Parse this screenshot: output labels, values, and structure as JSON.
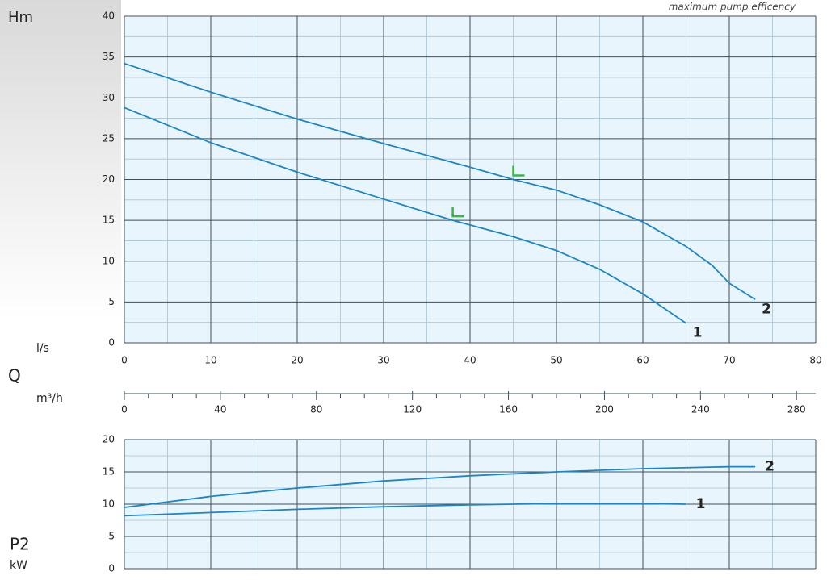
{
  "chart_data": [
    {
      "type": "line",
      "ylabel": "Hm",
      "xlabel": "l/s",
      "quantity_label": "Q",
      "annotation": "maximum pump efficency",
      "xlim": [
        0,
        80
      ],
      "xticks": [
        0,
        10,
        20,
        30,
        40,
        50,
        60,
        70,
        80
      ],
      "minor_xticks": [
        5,
        15,
        25,
        35,
        45,
        55,
        65,
        75
      ],
      "ylim": [
        0,
        40
      ],
      "yticks": [
        0,
        5,
        10,
        15,
        20,
        25,
        30,
        35,
        40
      ],
      "minor_yticks": [
        2.5,
        7.5,
        12.5,
        17.5,
        22.5,
        27.5,
        32.5,
        37.5
      ],
      "grid": true,
      "series": [
        {
          "name": "1",
          "color": "#1a86c7",
          "x": [
            0,
            10,
            20,
            30,
            38,
            45,
            50,
            55,
            60,
            65
          ],
          "values": [
            28.8,
            24.5,
            20.9,
            17.6,
            15,
            13,
            11.3,
            9,
            6,
            2.4
          ]
        },
        {
          "name": "2",
          "color": "#1a86c7",
          "x": [
            0,
            10,
            20,
            30,
            40,
            45,
            50,
            55,
            60,
            65,
            68,
            70,
            73
          ],
          "values": [
            34.2,
            30.7,
            27.4,
            24.4,
            21.5,
            20,
            18.7,
            16.9,
            14.8,
            11.8,
            9.5,
            7.3,
            5.3
          ]
        }
      ],
      "markers": {
        "color": "#3bb54a",
        "x": [
          38,
          45
        ],
        "values": [
          15.5,
          20.5
        ]
      }
    },
    {
      "type": "axis",
      "xlabel": "m³/h",
      "xlim": [
        0,
        288
      ],
      "xticks": [
        0,
        40,
        80,
        120,
        160,
        200,
        240,
        280
      ],
      "minor_xticks": [
        10,
        20,
        30,
        50,
        60,
        70,
        90,
        100,
        110,
        130,
        140,
        150,
        170,
        180,
        190,
        210,
        220,
        230,
        250,
        260,
        270
      ]
    },
    {
      "type": "line",
      "ylabel": "P2",
      "yunit": "kW",
      "xlim": [
        0,
        80
      ],
      "xticks": [
        0,
        10,
        20,
        30,
        40,
        50,
        60,
        70,
        80
      ],
      "minor_xticks": [
        5,
        15,
        25,
        35,
        45,
        55,
        65,
        75
      ],
      "ylim": [
        0,
        20
      ],
      "yticks": [
        0,
        5,
        10,
        15,
        20
      ],
      "minor_yticks": [
        2.5,
        7.5,
        12.5,
        17.5
      ],
      "grid": true,
      "series": [
        {
          "name": "1",
          "color": "#1a86c7",
          "x": [
            0,
            10,
            20,
            30,
            40,
            50,
            60,
            65
          ],
          "values": [
            8.2,
            8.7,
            9.2,
            9.6,
            9.9,
            10.1,
            10.1,
            10
          ]
        },
        {
          "name": "2",
          "color": "#1a86c7",
          "x": [
            0,
            10,
            20,
            30,
            40,
            50,
            60,
            70,
            73
          ],
          "values": [
            9.5,
            11.2,
            12.5,
            13.6,
            14.4,
            15,
            15.5,
            15.8,
            15.8
          ]
        }
      ]
    }
  ]
}
